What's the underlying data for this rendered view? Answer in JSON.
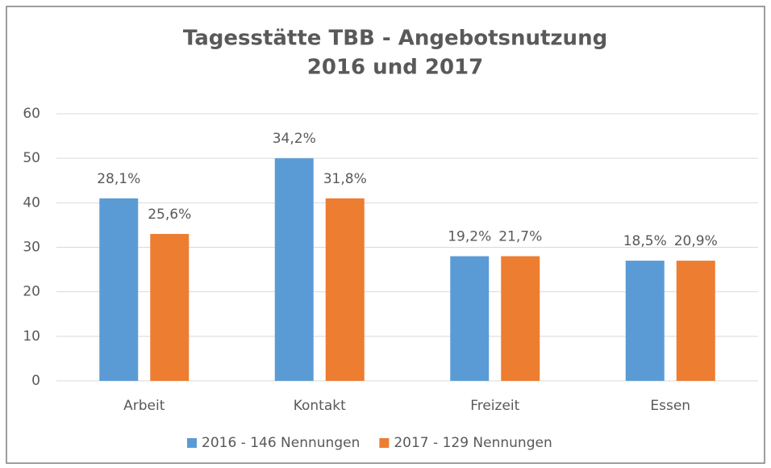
{
  "chart_data": {
    "type": "bar",
    "title": [
      "Tagesstätte TBB - Angebotsnutzung",
      "2016 und 2017"
    ],
    "categories": [
      "Arbeit",
      "Kontakt",
      "Freizeit",
      "Essen"
    ],
    "series": [
      {
        "name": "2016 - 146 Nennungen",
        "color": "#5b9bd5",
        "values": [
          41,
          50,
          28,
          27
        ],
        "value_labels": [
          "28,1%",
          "34,2%",
          "19,2%",
          "18,5%"
        ]
      },
      {
        "name": "2017 - 129 Nennungen",
        "color": "#ed7d31",
        "values": [
          33,
          41,
          28,
          27
        ],
        "value_labels": [
          "25,6%",
          "31,8%",
          "21,7%",
          "20,9%"
        ]
      }
    ],
    "ylim": [
      0,
      60
    ],
    "yticks": [
      0,
      10,
      20,
      30,
      40,
      50,
      60
    ],
    "grid": true,
    "legend": "bottom"
  }
}
